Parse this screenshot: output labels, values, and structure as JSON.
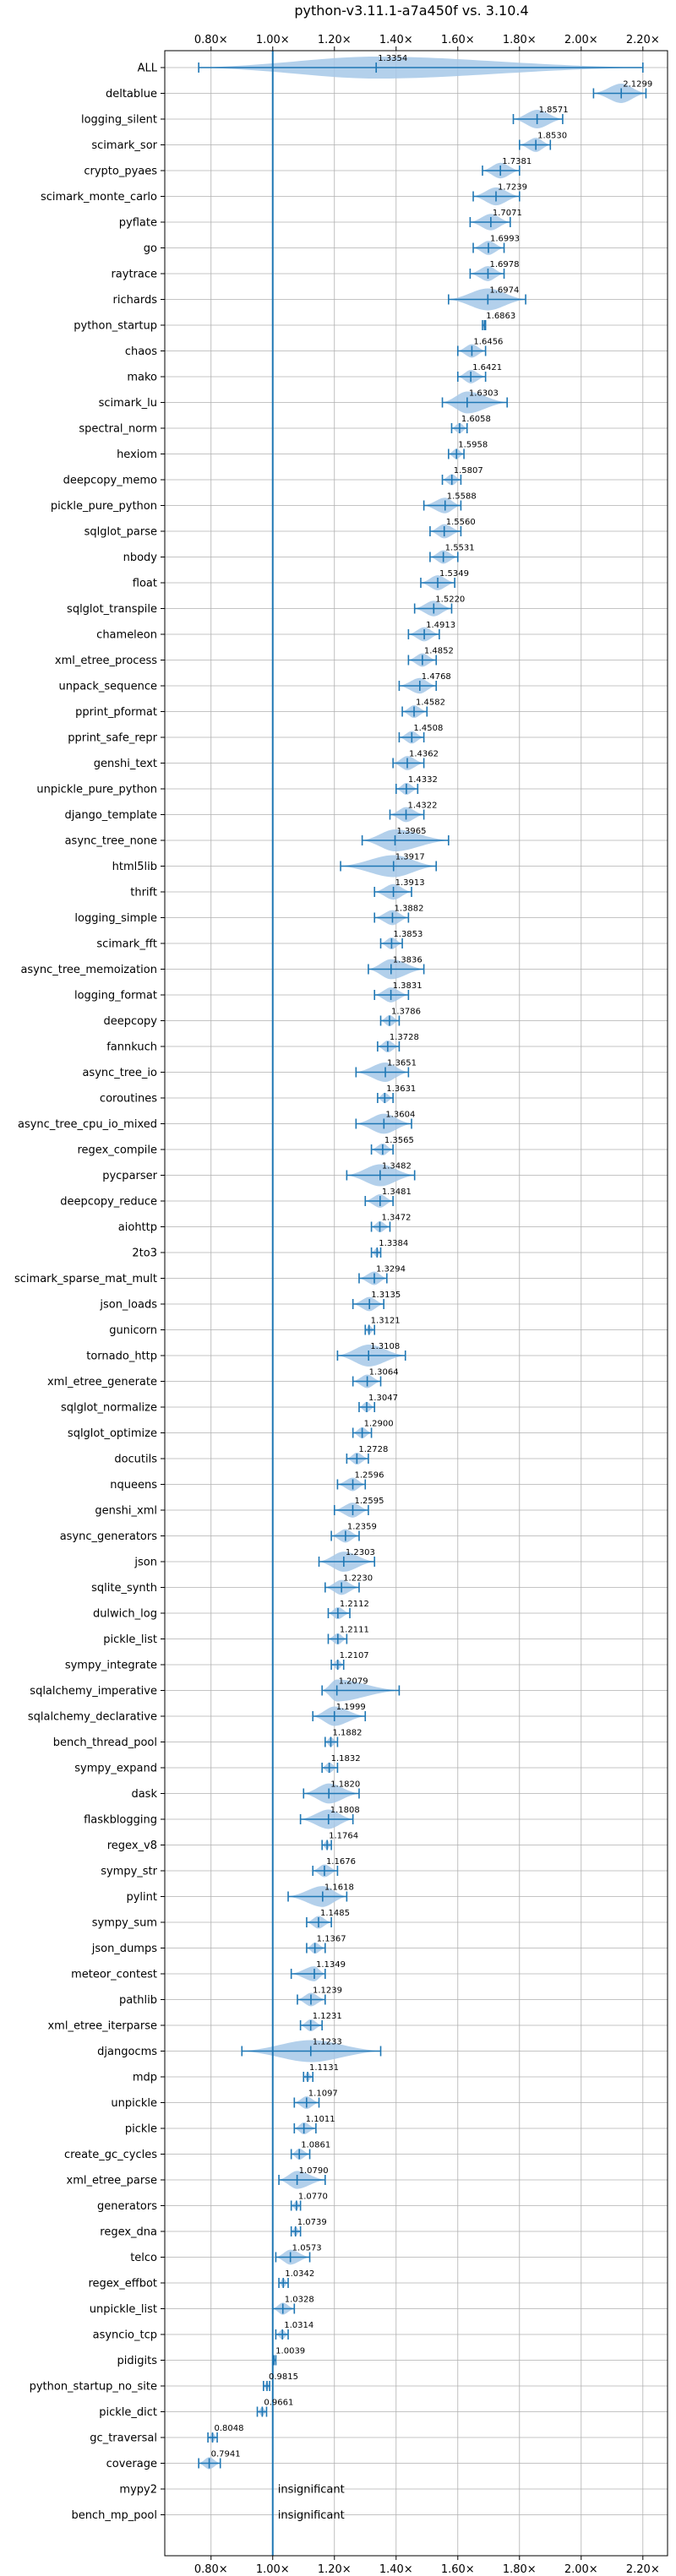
{
  "chart_data": {
    "type": "violin",
    "title": "python-v3.11.1-a7a450f vs. 3.10.4",
    "xlim": [
      0.65,
      2.28
    ],
    "xticks": [
      0.8,
      1.0,
      1.2,
      1.4,
      1.6,
      1.8,
      2.0,
      2.2
    ],
    "xtick_labels": [
      "0.80×",
      "1.00×",
      "1.20×",
      "1.40×",
      "1.60×",
      "1.80×",
      "2.00×",
      "2.20×"
    ],
    "reference_line": 1.0,
    "grid": true,
    "colors": {
      "violin": "#a6c8e8",
      "line": "#1f77b4",
      "grid": "#b0b0b0",
      "axis": "#000000"
    },
    "insignificant_label": "insignificant",
    "benchmarks": [
      {
        "name": "ALL",
        "median": 1.3354,
        "min": 0.76,
        "max": 2.2,
        "label": "1.3354"
      },
      {
        "name": "deltablue",
        "median": 2.1299,
        "min": 2.04,
        "max": 2.21,
        "label": "2.1299"
      },
      {
        "name": "logging_silent",
        "median": 1.8571,
        "min": 1.78,
        "max": 1.94,
        "label": "1.8571"
      },
      {
        "name": "scimark_sor",
        "median": 1.853,
        "min": 1.8,
        "max": 1.9,
        "label": "1.8530"
      },
      {
        "name": "crypto_pyaes",
        "median": 1.7381,
        "min": 1.68,
        "max": 1.8,
        "label": "1.7381"
      },
      {
        "name": "scimark_monte_carlo",
        "median": 1.7239,
        "min": 1.65,
        "max": 1.8,
        "label": "1.7239"
      },
      {
        "name": "pyflate",
        "median": 1.7071,
        "min": 1.64,
        "max": 1.77,
        "label": "1.7071"
      },
      {
        "name": "go",
        "median": 1.6993,
        "min": 1.65,
        "max": 1.75,
        "label": "1.6993"
      },
      {
        "name": "raytrace",
        "median": 1.6978,
        "min": 1.64,
        "max": 1.75,
        "label": "1.6978"
      },
      {
        "name": "richards",
        "median": 1.6974,
        "min": 1.57,
        "max": 1.82,
        "label": "1.6974"
      },
      {
        "name": "python_startup",
        "median": 1.6863,
        "min": 1.68,
        "max": 1.69,
        "label": "1.6863"
      },
      {
        "name": "chaos",
        "median": 1.6456,
        "min": 1.6,
        "max": 1.69,
        "label": "1.6456"
      },
      {
        "name": "mako",
        "median": 1.6421,
        "min": 1.6,
        "max": 1.69,
        "label": "1.6421"
      },
      {
        "name": "scimark_lu",
        "median": 1.6303,
        "min": 1.55,
        "max": 1.76,
        "label": "1.6303"
      },
      {
        "name": "spectral_norm",
        "median": 1.6058,
        "min": 1.58,
        "max": 1.63,
        "label": "1.6058"
      },
      {
        "name": "hexiom",
        "median": 1.5958,
        "min": 1.57,
        "max": 1.62,
        "label": "1.5958"
      },
      {
        "name": "deepcopy_memo",
        "median": 1.5807,
        "min": 1.55,
        "max": 1.61,
        "label": "1.5807"
      },
      {
        "name": "pickle_pure_python",
        "median": 1.5588,
        "min": 1.49,
        "max": 1.61,
        "label": "1.5588"
      },
      {
        "name": "sqlglot_parse",
        "median": 1.556,
        "min": 1.51,
        "max": 1.61,
        "label": "1.5560"
      },
      {
        "name": "nbody",
        "median": 1.5531,
        "min": 1.51,
        "max": 1.6,
        "label": "1.5531"
      },
      {
        "name": "float",
        "median": 1.5349,
        "min": 1.48,
        "max": 1.59,
        "label": "1.5349"
      },
      {
        "name": "sqlglot_transpile",
        "median": 1.522,
        "min": 1.46,
        "max": 1.58,
        "label": "1.5220"
      },
      {
        "name": "chameleon",
        "median": 1.4913,
        "min": 1.44,
        "max": 1.54,
        "label": "1.4913"
      },
      {
        "name": "xml_etree_process",
        "median": 1.4852,
        "min": 1.44,
        "max": 1.53,
        "label": "1.4852"
      },
      {
        "name": "unpack_sequence",
        "median": 1.4768,
        "min": 1.41,
        "max": 1.53,
        "label": "1.4768"
      },
      {
        "name": "pprint_pformat",
        "median": 1.4582,
        "min": 1.42,
        "max": 1.5,
        "label": "1.4582"
      },
      {
        "name": "pprint_safe_repr",
        "median": 1.4508,
        "min": 1.41,
        "max": 1.49,
        "label": "1.4508"
      },
      {
        "name": "genshi_text",
        "median": 1.4362,
        "min": 1.39,
        "max": 1.49,
        "label": "1.4362"
      },
      {
        "name": "unpickle_pure_python",
        "median": 1.4332,
        "min": 1.4,
        "max": 1.47,
        "label": "1.4332"
      },
      {
        "name": "django_template",
        "median": 1.4322,
        "min": 1.38,
        "max": 1.49,
        "label": "1.4322"
      },
      {
        "name": "async_tree_none",
        "median": 1.3965,
        "min": 1.29,
        "max": 1.57,
        "label": "1.3965"
      },
      {
        "name": "html5lib",
        "median": 1.3917,
        "min": 1.22,
        "max": 1.53,
        "label": "1.3917"
      },
      {
        "name": "thrift",
        "median": 1.3913,
        "min": 1.33,
        "max": 1.45,
        "label": "1.3913"
      },
      {
        "name": "logging_simple",
        "median": 1.3882,
        "min": 1.33,
        "max": 1.44,
        "label": "1.3882"
      },
      {
        "name": "scimark_fft",
        "median": 1.3853,
        "min": 1.35,
        "max": 1.42,
        "label": "1.3853"
      },
      {
        "name": "async_tree_memoization",
        "median": 1.3836,
        "min": 1.31,
        "max": 1.49,
        "label": "1.3836"
      },
      {
        "name": "logging_format",
        "median": 1.3831,
        "min": 1.33,
        "max": 1.44,
        "label": "1.3831"
      },
      {
        "name": "deepcopy",
        "median": 1.3786,
        "min": 1.35,
        "max": 1.41,
        "label": "1.3786"
      },
      {
        "name": "fannkuch",
        "median": 1.3728,
        "min": 1.34,
        "max": 1.41,
        "label": "1.3728"
      },
      {
        "name": "async_tree_io",
        "median": 1.3651,
        "min": 1.27,
        "max": 1.44,
        "label": "1.3651"
      },
      {
        "name": "coroutines",
        "median": 1.3631,
        "min": 1.34,
        "max": 1.39,
        "label": "1.3631"
      },
      {
        "name": "async_tree_cpu_io_mixed",
        "median": 1.3604,
        "min": 1.27,
        "max": 1.45,
        "label": "1.3604"
      },
      {
        "name": "regex_compile",
        "median": 1.3565,
        "min": 1.32,
        "max": 1.39,
        "label": "1.3565"
      },
      {
        "name": "pycparser",
        "median": 1.3482,
        "min": 1.24,
        "max": 1.46,
        "label": "1.3482"
      },
      {
        "name": "deepcopy_reduce",
        "median": 1.3481,
        "min": 1.3,
        "max": 1.39,
        "label": "1.3481"
      },
      {
        "name": "aiohttp",
        "median": 1.3472,
        "min": 1.32,
        "max": 1.38,
        "label": "1.3472"
      },
      {
        "name": "2to3",
        "median": 1.3384,
        "min": 1.32,
        "max": 1.35,
        "label": "1.3384"
      },
      {
        "name": "scimark_sparse_mat_mult",
        "median": 1.3294,
        "min": 1.28,
        "max": 1.37,
        "label": "1.3294"
      },
      {
        "name": "json_loads",
        "median": 1.3135,
        "min": 1.26,
        "max": 1.36,
        "label": "1.3135"
      },
      {
        "name": "gunicorn",
        "median": 1.3121,
        "min": 1.3,
        "max": 1.33,
        "label": "1.3121"
      },
      {
        "name": "tornado_http",
        "median": 1.3108,
        "min": 1.21,
        "max": 1.43,
        "label": "1.3108"
      },
      {
        "name": "xml_etree_generate",
        "median": 1.3064,
        "min": 1.26,
        "max": 1.35,
        "label": "1.3064"
      },
      {
        "name": "sqlglot_normalize",
        "median": 1.3047,
        "min": 1.28,
        "max": 1.33,
        "label": "1.3047"
      },
      {
        "name": "sqlglot_optimize",
        "median": 1.29,
        "min": 1.26,
        "max": 1.32,
        "label": "1.2900"
      },
      {
        "name": "docutils",
        "median": 1.2728,
        "min": 1.24,
        "max": 1.31,
        "label": "1.2728"
      },
      {
        "name": "nqueens",
        "median": 1.2596,
        "min": 1.21,
        "max": 1.3,
        "label": "1.2596"
      },
      {
        "name": "genshi_xml",
        "median": 1.2595,
        "min": 1.2,
        "max": 1.31,
        "label": "1.2595"
      },
      {
        "name": "async_generators",
        "median": 1.2359,
        "min": 1.19,
        "max": 1.28,
        "label": "1.2359"
      },
      {
        "name": "json",
        "median": 1.2303,
        "min": 1.15,
        "max": 1.33,
        "label": "1.2303"
      },
      {
        "name": "sqlite_synth",
        "median": 1.223,
        "min": 1.17,
        "max": 1.28,
        "label": "1.2230"
      },
      {
        "name": "dulwich_log",
        "median": 1.2112,
        "min": 1.18,
        "max": 1.25,
        "label": "1.2112"
      },
      {
        "name": "pickle_list",
        "median": 1.2111,
        "min": 1.18,
        "max": 1.24,
        "label": "1.2111"
      },
      {
        "name": "sympy_integrate",
        "median": 1.2107,
        "min": 1.19,
        "max": 1.23,
        "label": "1.2107"
      },
      {
        "name": "sqlalchemy_imperative",
        "median": 1.2079,
        "min": 1.16,
        "max": 1.41,
        "label": "1.2079"
      },
      {
        "name": "sqlalchemy_declarative",
        "median": 1.1999,
        "min": 1.13,
        "max": 1.3,
        "label": "1.1999"
      },
      {
        "name": "bench_thread_pool",
        "median": 1.1882,
        "min": 1.17,
        "max": 1.21,
        "label": "1.1882"
      },
      {
        "name": "sympy_expand",
        "median": 1.1832,
        "min": 1.16,
        "max": 1.21,
        "label": "1.1832"
      },
      {
        "name": "dask",
        "median": 1.182,
        "min": 1.1,
        "max": 1.28,
        "label": "1.1820"
      },
      {
        "name": "flaskblogging",
        "median": 1.1808,
        "min": 1.09,
        "max": 1.26,
        "label": "1.1808"
      },
      {
        "name": "regex_v8",
        "median": 1.1764,
        "min": 1.16,
        "max": 1.19,
        "label": "1.1764"
      },
      {
        "name": "sympy_str",
        "median": 1.1676,
        "min": 1.13,
        "max": 1.21,
        "label": "1.1676"
      },
      {
        "name": "pylint",
        "median": 1.1618,
        "min": 1.05,
        "max": 1.24,
        "label": "1.1618"
      },
      {
        "name": "sympy_sum",
        "median": 1.1485,
        "min": 1.11,
        "max": 1.19,
        "label": "1.1485"
      },
      {
        "name": "json_dumps",
        "median": 1.1367,
        "min": 1.11,
        "max": 1.17,
        "label": "1.1367"
      },
      {
        "name": "meteor_contest",
        "median": 1.1349,
        "min": 1.06,
        "max": 1.17,
        "label": "1.1349"
      },
      {
        "name": "pathlib",
        "median": 1.1239,
        "min": 1.08,
        "max": 1.17,
        "label": "1.1239"
      },
      {
        "name": "xml_etree_iterparse",
        "median": 1.1231,
        "min": 1.09,
        "max": 1.16,
        "label": "1.1231"
      },
      {
        "name": "djangocms",
        "median": 1.1233,
        "min": 0.9,
        "max": 1.35,
        "label": "1.1233"
      },
      {
        "name": "mdp",
        "median": 1.1131,
        "min": 1.1,
        "max": 1.13,
        "label": "1.1131"
      },
      {
        "name": "unpickle",
        "median": 1.1097,
        "min": 1.07,
        "max": 1.15,
        "label": "1.1097"
      },
      {
        "name": "pickle",
        "median": 1.1011,
        "min": 1.07,
        "max": 1.14,
        "label": "1.1011"
      },
      {
        "name": "create_gc_cycles",
        "median": 1.0861,
        "min": 1.06,
        "max": 1.12,
        "label": "1.0861"
      },
      {
        "name": "xml_etree_parse",
        "median": 1.079,
        "min": 1.02,
        "max": 1.17,
        "label": "1.0790"
      },
      {
        "name": "generators",
        "median": 1.077,
        "min": 1.06,
        "max": 1.09,
        "label": "1.0770"
      },
      {
        "name": "regex_dna",
        "median": 1.0739,
        "min": 1.06,
        "max": 1.09,
        "label": "1.0739"
      },
      {
        "name": "telco",
        "median": 1.0573,
        "min": 1.01,
        "max": 1.12,
        "label": "1.0573"
      },
      {
        "name": "regex_effbot",
        "median": 1.0342,
        "min": 1.02,
        "max": 1.05,
        "label": "1.0342"
      },
      {
        "name": "unpickle_list",
        "median": 1.0328,
        "min": 1.0,
        "max": 1.07,
        "label": "1.0328"
      },
      {
        "name": "asyncio_tcp",
        "median": 1.0314,
        "min": 1.01,
        "max": 1.05,
        "label": "1.0314"
      },
      {
        "name": "pidigits",
        "median": 1.0039,
        "min": 1.0,
        "max": 1.01,
        "label": "1.0039"
      },
      {
        "name": "python_startup_no_site",
        "median": 0.9815,
        "min": 0.97,
        "max": 0.99,
        "label": "0.9815"
      },
      {
        "name": "pickle_dict",
        "median": 0.9661,
        "min": 0.95,
        "max": 0.98,
        "label": "0.9661"
      },
      {
        "name": "gc_traversal",
        "median": 0.8048,
        "min": 0.79,
        "max": 0.82,
        "label": "0.8048"
      },
      {
        "name": "coverage",
        "median": 0.7941,
        "min": 0.76,
        "max": 0.83,
        "label": "0.7941"
      },
      {
        "name": "mypy2",
        "insignificant": true
      },
      {
        "name": "bench_mp_pool",
        "insignificant": true
      }
    ]
  }
}
